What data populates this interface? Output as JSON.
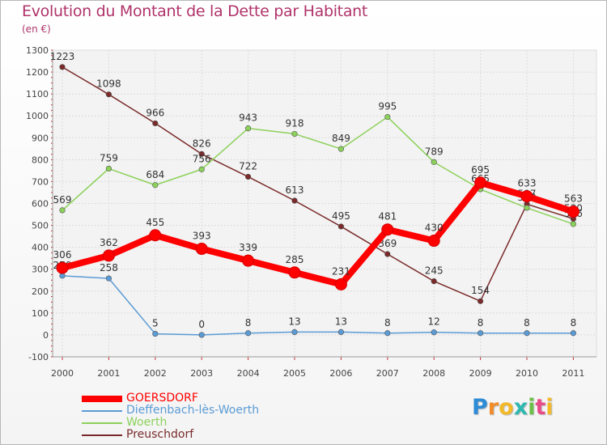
{
  "title": "Evolution du Montant de la Dette par Habitant",
  "subtitle": "(en €)",
  "logo_text": "Proxiti",
  "chart_data": {
    "type": "line",
    "title": "Evolution du Montant de la Dette par Habitant",
    "subtitle": "(en €)",
    "ylim": [
      -100,
      1300
    ],
    "yticks": [
      -100,
      0,
      100,
      200,
      300,
      400,
      500,
      600,
      700,
      800,
      900,
      1000,
      1100,
      1200,
      1300
    ],
    "categories": [
      "2000",
      "2001",
      "2002",
      "2003",
      "2004",
      "2005",
      "2006",
      "2007",
      "2008",
      "2009",
      "2010",
      "2011"
    ],
    "grid": true,
    "legend_position": "bottom-left",
    "series": [
      {
        "name": "Preuschdorf",
        "color": "#7a2a2a",
        "values": [
          1223,
          1098,
          966,
          826,
          722,
          613,
          495,
          369,
          245,
          154,
          597,
          530
        ]
      },
      {
        "name": "Woerth",
        "color": "#8cd15a",
        "values": [
          569,
          759,
          684,
          756,
          943,
          918,
          849,
          995,
          789,
          665,
          580,
          506
        ]
      },
      {
        "name": "Dieffenbach-lès-Woerth",
        "color": "#5b9bd5",
        "values": [
          270,
          258,
          5,
          0,
          8,
          13,
          13,
          8,
          12,
          8,
          8,
          8
        ]
      },
      {
        "name": "GOERSDORF",
        "color": "#ff0000",
        "values": [
          306,
          362,
          455,
          393,
          339,
          285,
          231,
          481,
          430,
          695,
          633,
          563
        ]
      }
    ],
    "legend": [
      "GOERSDORF",
      "Dieffenbach-lès-Woerth",
      "Woerth",
      "Preuschdorf"
    ]
  }
}
